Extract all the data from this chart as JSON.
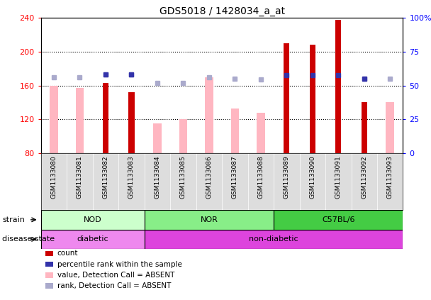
{
  "title": "GDS5018 / 1428034_a_at",
  "samples": [
    "GSM1133080",
    "GSM1133081",
    "GSM1133082",
    "GSM1133083",
    "GSM1133084",
    "GSM1133085",
    "GSM1133086",
    "GSM1133087",
    "GSM1133088",
    "GSM1133089",
    "GSM1133090",
    "GSM1133091",
    "GSM1133092",
    "GSM1133093"
  ],
  "count_values": [
    null,
    null,
    163,
    152,
    null,
    null,
    null,
    null,
    null,
    210,
    208,
    238,
    140,
    null
  ],
  "pink_values": [
    160,
    157,
    null,
    null,
    115,
    120,
    170,
    133,
    128,
    null,
    null,
    null,
    null,
    140
  ],
  "blue_dot_values": [
    170,
    170,
    173,
    173,
    163,
    163,
    170,
    168,
    167,
    172,
    172,
    172,
    168,
    168
  ],
  "lavender_dot_values": [
    170,
    170,
    173,
    173,
    163,
    163,
    170,
    168,
    167,
    null,
    null,
    null,
    168,
    168
  ],
  "count_color": "#cc0000",
  "pink_color": "#ffb6c1",
  "blue_dot_color": "#3333aa",
  "lavender_dot_color": "#aaaacc",
  "ylim": [
    80,
    240
  ],
  "y2lim": [
    0,
    100
  ],
  "yticks": [
    80,
    120,
    160,
    200,
    240
  ],
  "y2ticks": [
    0,
    25,
    50,
    75,
    100
  ],
  "strain_groups": [
    {
      "label": "NOD",
      "start": 0,
      "end": 3,
      "color": "#ccffcc"
    },
    {
      "label": "NOR",
      "start": 4,
      "end": 8,
      "color": "#88ee88"
    },
    {
      "label": "C57BL/6",
      "start": 9,
      "end": 13,
      "color": "#44cc44"
    }
  ],
  "disease_groups": [
    {
      "label": "diabetic",
      "start": 0,
      "end": 3,
      "color": "#ee88ee"
    },
    {
      "label": "non-diabetic",
      "start": 4,
      "end": 13,
      "color": "#dd44dd"
    }
  ],
  "strain_label": "strain",
  "disease_label": "disease state",
  "legend_items": [
    {
      "color": "#cc0000",
      "label": "count"
    },
    {
      "color": "#3333aa",
      "label": "percentile rank within the sample"
    },
    {
      "color": "#ffb6c1",
      "label": "value, Detection Call = ABSENT"
    },
    {
      "color": "#aaaacc",
      "label": "rank, Detection Call = ABSENT"
    }
  ]
}
